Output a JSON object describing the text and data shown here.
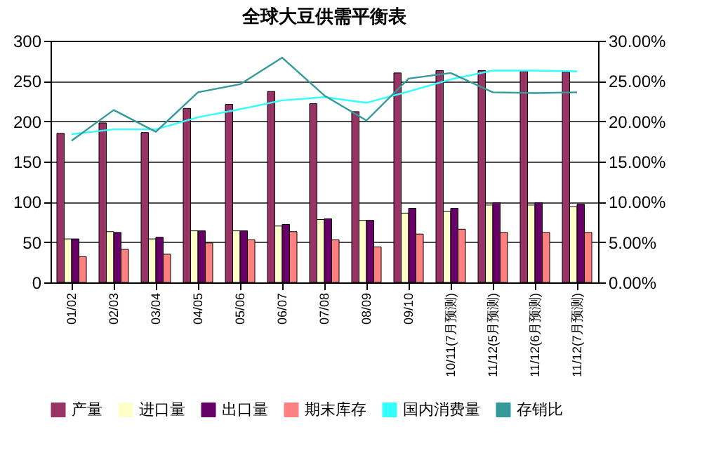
{
  "chart_data": {
    "type": "bar",
    "title": "全球大豆供需平衡表",
    "categories": [
      "01/02",
      "02/03",
      "03/04",
      "04/05",
      "05/06",
      "06/07",
      "07/08",
      "08/09",
      "09/10",
      "10/11(7月预测)",
      "11/12(5月预测)",
      "11/12(6月预测)",
      "11/12(7月预测)"
    ],
    "series": [
      {
        "name": "产量",
        "color": "#993366",
        "values": [
          185,
          198,
          186,
          216,
          221,
          237,
          222,
          212,
          260,
          263,
          263,
          262,
          261
        ]
      },
      {
        "name": "进口量",
        "color": "#ffffcc",
        "values": [
          54,
          63,
          54,
          64,
          64,
          70,
          78,
          77,
          86,
          88,
          96,
          96,
          94
        ]
      },
      {
        "name": "出口量",
        "color": "#660066",
        "values": [
          54,
          62,
          56,
          64,
          64,
          72,
          79,
          77,
          92,
          92,
          99,
          99,
          97
        ]
      },
      {
        "name": "期末库存",
        "color": "#ff8080",
        "values": [
          32,
          41,
          35,
          49,
          53,
          63,
          53,
          44,
          60,
          66,
          62,
          62,
          62
        ]
      },
      {
        "name": "国内消费量",
        "type": "line",
        "color": "#33ffff",
        "values": [
          184,
          190,
          190,
          205,
          215,
          226,
          230,
          223,
          237,
          252,
          263,
          263,
          262
        ]
      },
      {
        "name": "存销比",
        "type": "line",
        "axis": "y2",
        "color": "#339999",
        "values": [
          17.6,
          21.4,
          18.7,
          23.6,
          24.6,
          27.9,
          23.2,
          20.1,
          25.3,
          26.0,
          23.6,
          23.5,
          23.6
        ]
      }
    ],
    "ylim": [
      0,
      300
    ],
    "yticks": [
      0,
      50,
      100,
      150,
      200,
      250,
      300
    ],
    "y2lim": [
      0,
      30
    ],
    "y2ticks": [
      {
        "value": 0,
        "label": "0.00%"
      },
      {
        "value": 5,
        "label": "5.00%"
      },
      {
        "value": 10,
        "label": "10.00%"
      },
      {
        "value": 15,
        "label": "15.00%"
      },
      {
        "value": 20,
        "label": "20.00%"
      },
      {
        "value": 25,
        "label": "25.00%"
      },
      {
        "value": 30,
        "label": "30.00%"
      }
    ],
    "grid": "y",
    "legend": "bottom"
  }
}
